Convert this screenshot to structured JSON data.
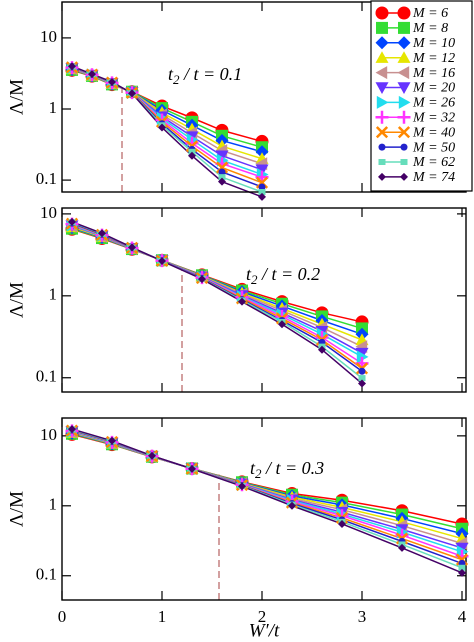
{
  "chart_data": [
    {
      "type": "line",
      "log_y": true,
      "ylabel": "Λ/M",
      "annotation": {
        "base": "t",
        "sub": "2",
        "rest": " / t = 0.1"
      },
      "vline": {
        "x": 0.6,
        "top": 1.9,
        "color": "#c88888"
      },
      "xlim": [
        0,
        4.04
      ],
      "xticks": [
        0,
        1,
        2,
        3,
        4
      ],
      "ylim": [
        0.068,
        32
      ],
      "yticks": [
        0.1,
        1,
        10
      ],
      "legend": "top-right",
      "x": [
        0.1,
        0.3,
        0.5,
        0.7,
        1.0,
        1.3,
        1.6,
        2.0
      ],
      "series": [
        {
          "name": "M = 6",
          "color": "#ff0000",
          "marker": "circle",
          "values": [
            3.5,
            2.9,
            2.2,
            1.75,
            1.1,
            0.75,
            0.5,
            0.35
          ]
        },
        {
          "name": "M = 8",
          "color": "#33dd33",
          "marker": "square",
          "values": [
            3.55,
            2.92,
            2.22,
            1.75,
            1.03,
            0.66,
            0.42,
            0.29
          ]
        },
        {
          "name": "M = 10",
          "color": "#0044ff",
          "marker": "diamond",
          "values": [
            3.6,
            2.94,
            2.24,
            1.74,
            0.96,
            0.59,
            0.36,
            0.25
          ]
        },
        {
          "name": "M = 12",
          "color": "#e6e600",
          "marker": "triangle-up",
          "values": [
            3.65,
            2.96,
            2.26,
            1.73,
            0.89,
            0.52,
            0.3,
            0.2
          ]
        },
        {
          "name": "M = 16",
          "color": "#c89090",
          "marker": "triangle-left",
          "values": [
            3.7,
            2.98,
            2.28,
            1.72,
            0.83,
            0.46,
            0.26,
            0.17
          ]
        },
        {
          "name": "M = 20",
          "color": "#6633ff",
          "marker": "triangle-down",
          "values": [
            3.75,
            3.0,
            2.3,
            1.71,
            0.78,
            0.41,
            0.22,
            0.14
          ]
        },
        {
          "name": "M = 26",
          "color": "#22ddee",
          "marker": "triangle-right",
          "values": [
            3.78,
            3.02,
            2.31,
            1.7,
            0.74,
            0.37,
            0.19,
            0.12
          ]
        },
        {
          "name": "M = 32",
          "color": "#ff33ff",
          "marker": "plus",
          "values": [
            3.82,
            3.03,
            2.33,
            1.7,
            0.7,
            0.33,
            0.17,
            0.11
          ]
        },
        {
          "name": "M = 40",
          "color": "#ff8800",
          "marker": "cross",
          "values": [
            3.86,
            3.05,
            2.35,
            1.69,
            0.66,
            0.3,
            0.15,
            0.092
          ]
        },
        {
          "name": "M = 50",
          "color": "#2222cc",
          "marker": "small-circle",
          "values": [
            3.9,
            3.07,
            2.36,
            1.68,
            0.62,
            0.27,
            0.13,
            0.08
          ]
        },
        {
          "name": "M = 62",
          "color": "#66ddbb",
          "marker": "small-square",
          "values": [
            3.95,
            3.08,
            2.38,
            1.67,
            0.59,
            0.25,
            0.11,
            0.068
          ]
        },
        {
          "name": "M = 74",
          "color": "#440066",
          "marker": "small-diamond",
          "values": [
            4.0,
            3.1,
            2.4,
            1.66,
            0.55,
            0.22,
            0.095,
            0.058
          ]
        }
      ]
    },
    {
      "type": "line",
      "log_y": true,
      "ylabel": "Λ/M",
      "annotation": {
        "base": "t",
        "sub": "2",
        "rest": " / t = 0.2"
      },
      "vline": {
        "x": 1.2,
        "top": 2.2,
        "color": "#c88888"
      },
      "xlim": [
        0,
        4.04
      ],
      "xticks": [
        0,
        1,
        2,
        3,
        4
      ],
      "ylim": [
        0.067,
        11.8
      ],
      "yticks": [
        0.1,
        1,
        10
      ],
      "x": [
        0.1,
        0.4,
        0.7,
        1.0,
        1.4,
        1.8,
        2.2,
        2.6,
        3.0
      ],
      "series": [
        {
          "values": [
            6.5,
            5.0,
            3.7,
            2.72,
            1.8,
            1.2,
            0.85,
            0.62,
            0.48
          ]
        },
        {
          "values": [
            6.6,
            5.07,
            3.72,
            2.72,
            1.78,
            1.16,
            0.8,
            0.56,
            0.4
          ]
        },
        {
          "values": [
            6.8,
            5.15,
            3.74,
            2.71,
            1.76,
            1.12,
            0.75,
            0.5,
            0.34
          ]
        },
        {
          "values": [
            6.9,
            5.23,
            3.76,
            2.71,
            1.74,
            1.08,
            0.7,
            0.45,
            0.29
          ]
        },
        {
          "values": [
            7.1,
            5.31,
            3.78,
            2.7,
            1.72,
            1.05,
            0.66,
            0.41,
            0.24
          ]
        },
        {
          "values": [
            7.2,
            5.38,
            3.8,
            2.7,
            1.7,
            1.01,
            0.62,
            0.37,
            0.2
          ]
        },
        {
          "values": [
            7.3,
            5.45,
            3.82,
            2.69,
            1.68,
            0.98,
            0.59,
            0.34,
            0.18
          ]
        },
        {
          "values": [
            7.5,
            5.5,
            3.83,
            2.69,
            1.67,
            0.96,
            0.56,
            0.31,
            0.15
          ]
        },
        {
          "values": [
            7.6,
            5.56,
            3.85,
            2.68,
            1.65,
            0.93,
            0.53,
            0.29,
            0.13
          ]
        },
        {
          "values": [
            7.7,
            5.63,
            3.86,
            2.68,
            1.64,
            0.9,
            0.5,
            0.27,
            0.12
          ]
        },
        {
          "values": [
            7.9,
            5.71,
            3.88,
            2.67,
            1.62,
            0.88,
            0.48,
            0.24,
            0.099
          ]
        },
        {
          "values": [
            8.0,
            5.8,
            3.9,
            2.66,
            1.6,
            0.85,
            0.45,
            0.22,
            0.085
          ]
        }
      ]
    },
    {
      "type": "line",
      "log_y": true,
      "ylabel": "Λ/M",
      "xlabel": "W′/t",
      "annotation": {
        "base": "t",
        "sub": "2",
        "rest": " / t = 0.3"
      },
      "vline": {
        "x": 1.57,
        "top": 2.8,
        "color": "#c88888"
      },
      "xlim": [
        0,
        4.04
      ],
      "xticks": [
        0,
        1,
        2,
        3,
        4
      ],
      "ylim": [
        0.045,
        18
      ],
      "yticks": [
        0.1,
        1,
        10
      ],
      "x": [
        0.1,
        0.5,
        0.9,
        1.3,
        1.8,
        2.3,
        2.8,
        3.4,
        4.0
      ],
      "series": [
        {
          "values": [
            10.5,
            7.5,
            5.0,
            3.42,
            2.2,
            1.5,
            1.2,
            0.85,
            0.55
          ]
        },
        {
          "values": [
            10.7,
            7.58,
            5.02,
            3.42,
            2.17,
            1.44,
            1.11,
            0.75,
            0.47
          ]
        },
        {
          "values": [
            10.9,
            7.67,
            5.04,
            3.41,
            2.14,
            1.38,
            1.03,
            0.66,
            0.4
          ]
        },
        {
          "values": [
            11.1,
            7.75,
            5.06,
            3.41,
            2.11,
            1.33,
            0.95,
            0.59,
            0.34
          ]
        },
        {
          "values": [
            11.3,
            7.83,
            5.08,
            3.4,
            2.08,
            1.27,
            0.88,
            0.52,
            0.29
          ]
        },
        {
          "values": [
            11.5,
            7.92,
            5.1,
            3.4,
            2.05,
            1.22,
            0.81,
            0.46,
            0.25
          ]
        },
        {
          "values": [
            11.6,
            8.0,
            5.12,
            3.4,
            2.02,
            1.19,
            0.76,
            0.42,
            0.22
          ]
        },
        {
          "values": [
            11.8,
            8.08,
            5.13,
            3.39,
            2.0,
            1.15,
            0.72,
            0.38,
            0.19
          ]
        },
        {
          "values": [
            11.9,
            8.17,
            5.15,
            3.39,
            1.98,
            1.11,
            0.67,
            0.34,
            0.17
          ]
        },
        {
          "values": [
            12.1,
            8.25,
            5.16,
            3.38,
            1.95,
            1.08,
            0.63,
            0.31,
            0.15
          ]
        },
        {
          "values": [
            12.3,
            8.35,
            5.18,
            3.38,
            1.93,
            1.04,
            0.59,
            0.28,
            0.13
          ]
        },
        {
          "values": [
            12.5,
            8.5,
            5.2,
            3.37,
            1.9,
            1.0,
            0.55,
            0.25,
            0.11
          ]
        }
      ]
    }
  ]
}
